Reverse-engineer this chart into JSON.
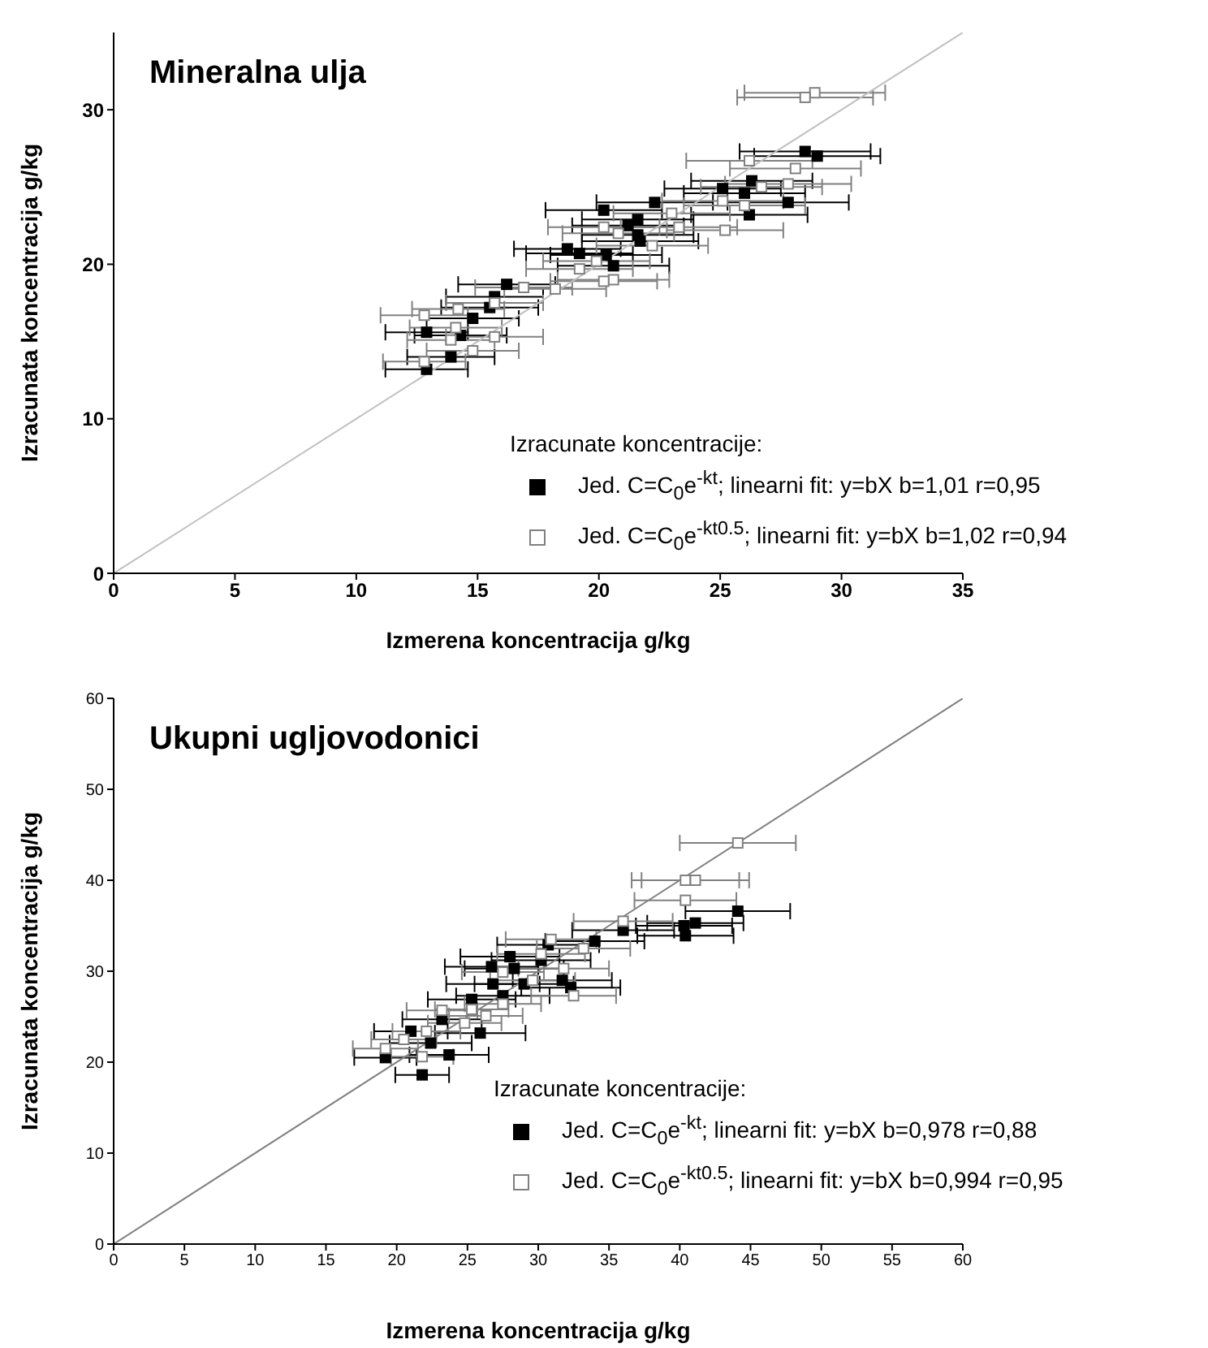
{
  "chart_data": [
    {
      "type": "scatter",
      "title": "Mineralna ulja",
      "xlabel": "Izmerena koncentracija g/kg",
      "ylabel": "Izracunata koncentracija g/kg",
      "legend_title": "Izracunate koncentracije:",
      "xlim": [
        0,
        35
      ],
      "ylim": [
        0,
        35
      ],
      "xticks": [
        0,
        5,
        10,
        15,
        20,
        25,
        30,
        35
      ],
      "yticks": [
        0,
        10,
        20,
        30
      ],
      "legend": "bottom right",
      "marker": "square",
      "grid": false,
      "series": [
        {
          "name": "Jed. C=C$_{0}$e$^{-kt}$; linearni fit: y=bX b=1,01 r=0,95",
          "color": "#000000",
          "x": [
            28.5,
            29.0,
            22.3,
            27.8,
            26.2,
            20.2,
            26.3,
            25.1,
            26.0,
            21.6,
            21.2,
            21.6,
            18.7,
            19.2,
            20.3,
            20.6,
            21.7,
            16.2,
            15.7,
            14.8,
            15.5,
            12.9,
            14.3,
            13.9,
            12.9
          ],
          "values": [
            27.3,
            27.0,
            24.0,
            24.0,
            23.2,
            23.5,
            25.4,
            24.9,
            24.6,
            22.9,
            22.5,
            21.9,
            21.0,
            20.7,
            20.6,
            19.9,
            21.5,
            18.7,
            17.9,
            16.5,
            17.2,
            15.6,
            15.4,
            14.0,
            13.2
          ],
          "xerrors": [
            2.7,
            2.6,
            2.4,
            2.5,
            2.4,
            2.4,
            2.5,
            2.4,
            2.5,
            2.3,
            2.3,
            2.3,
            2.2,
            2.2,
            2.3,
            2.3,
            2.4,
            2.0,
            2.0,
            1.9,
            2.0,
            1.7,
            1.9,
            1.8,
            1.7
          ]
        },
        {
          "name": "Jed. C=C$_{0}$e$^{-kt}$$^{0.5}$; linearni fit: y=bX b=1,02 r=0,94",
          "color": "#808080",
          "x": [
            28.9,
            28.5,
            26.2,
            28.1,
            27.8,
            26.7,
            25.1,
            26.0,
            23.0,
            25.2,
            20.2,
            20.8,
            23.3,
            22.2,
            19.9,
            19.2,
            20.6,
            20.2,
            16.9,
            18.2,
            12.8,
            14.2,
            15.7,
            14.1,
            15.7,
            13.9,
            14.8,
            12.8
          ],
          "values": [
            31.1,
            30.8,
            26.7,
            26.2,
            25.2,
            25.0,
            24.1,
            23.8,
            23.3,
            22.2,
            22.4,
            22.0,
            22.4,
            21.2,
            20.2,
            19.7,
            19.0,
            18.9,
            18.5,
            18.4,
            16.7,
            17.1,
            17.5,
            15.9,
            15.3,
            15.1,
            14.4,
            13.7
          ],
          "xerrors": [
            2.9,
            2.8,
            2.6,
            2.7,
            2.6,
            2.5,
            2.5,
            2.5,
            2.4,
            2.4,
            2.3,
            2.3,
            2.4,
            2.3,
            2.2,
            2.2,
            2.3,
            2.2,
            2.0,
            2.1,
            1.8,
            1.9,
            2.0,
            1.9,
            2.0,
            1.8,
            1.9,
            1.7
          ]
        },
        {
          "type": "line",
          "color": "#c0c0c0",
          "marker": "none",
          "x": [
            0,
            35
          ],
          "values": [
            0,
            35
          ]
        }
      ]
    },
    {
      "type": "scatter",
      "title": "Ukupni ugljovodonici",
      "xlabel": "Izmerena koncentracija g/kg",
      "ylabel": "Izracunata koncentracija g/kg",
      "legend_title": "Izracunate koncentracije:",
      "xlim": [
        0,
        60
      ],
      "ylim": [
        0,
        60
      ],
      "xticks": [
        0,
        5,
        10,
        15,
        20,
        25,
        30,
        35,
        40,
        45,
        50,
        55,
        60
      ],
      "yticks": [
        0,
        10,
        20,
        30,
        40,
        50,
        60
      ],
      "legend": "bottom right",
      "marker": "square",
      "grid": false,
      "series": [
        {
          "name": "Jed. C=C$_{0}$e$^{-kt}$; linearni fit: y=bX b=0,978 r=0,88",
          "color": "#000000",
          "x": [
            44.1,
            41.1,
            40.3,
            40.4,
            28.0,
            26.7,
            28.3,
            30.7,
            34.0,
            36.0,
            26.8,
            29.0,
            31.7,
            32.3,
            25.3,
            27.5,
            23.2,
            25.9,
            22.4,
            23.7,
            19.2,
            21.8,
            21.0,
            30.2
          ],
          "values": [
            36.6,
            35.3,
            35.0,
            33.9,
            31.6,
            30.5,
            30.3,
            32.9,
            33.3,
            34.5,
            28.6,
            28.6,
            29.0,
            28.2,
            26.9,
            27.3,
            24.7,
            23.2,
            22.1,
            20.8,
            20.5,
            18.6,
            23.4,
            31.2
          ],
          "xerrors": [
            3.7,
            3.4,
            3.4,
            3.4,
            3.5,
            3.3,
            3.5,
            3.6,
            3.5,
            3.6,
            3.3,
            3.5,
            3.5,
            3.5,
            3.1,
            3.3,
            2.8,
            3.2,
            2.9,
            2.8,
            2.2,
            1.9,
            2.6,
            3.5
          ]
        },
        {
          "name": "Jed. C=C$_{0}$e$^{-kt}$$^{0.5}$; linearni fit: y=bX b=0,994 r=0,95",
          "color": "#808080",
          "x": [
            44.1,
            40.4,
            41.1,
            40.4,
            36.0,
            30.9,
            33.2,
            30.2,
            27.5,
            29.6,
            31.8,
            32.5,
            27.5,
            25.3,
            23.2,
            24.8,
            22.1,
            20.5,
            19.2,
            21.8,
            26.3
          ],
          "values": [
            44.1,
            40.0,
            40.0,
            37.8,
            35.5,
            33.5,
            32.5,
            31.9,
            29.9,
            29.0,
            30.3,
            27.3,
            26.4,
            25.8,
            25.7,
            24.3,
            23.4,
            22.5,
            21.5,
            20.6,
            25.1
          ],
          "xerrors": [
            4.1,
            3.8,
            3.8,
            3.6,
            3.5,
            3.2,
            3.3,
            3.1,
            2.9,
            3.0,
            3.2,
            3.0,
            2.7,
            2.6,
            2.5,
            2.6,
            2.4,
            2.3,
            2.3,
            2.2,
            2.6
          ]
        },
        {
          "type": "line",
          "color": "#808080",
          "marker": "none",
          "x": [
            0,
            60
          ],
          "values": [
            0,
            60
          ]
        }
      ]
    }
  ]
}
